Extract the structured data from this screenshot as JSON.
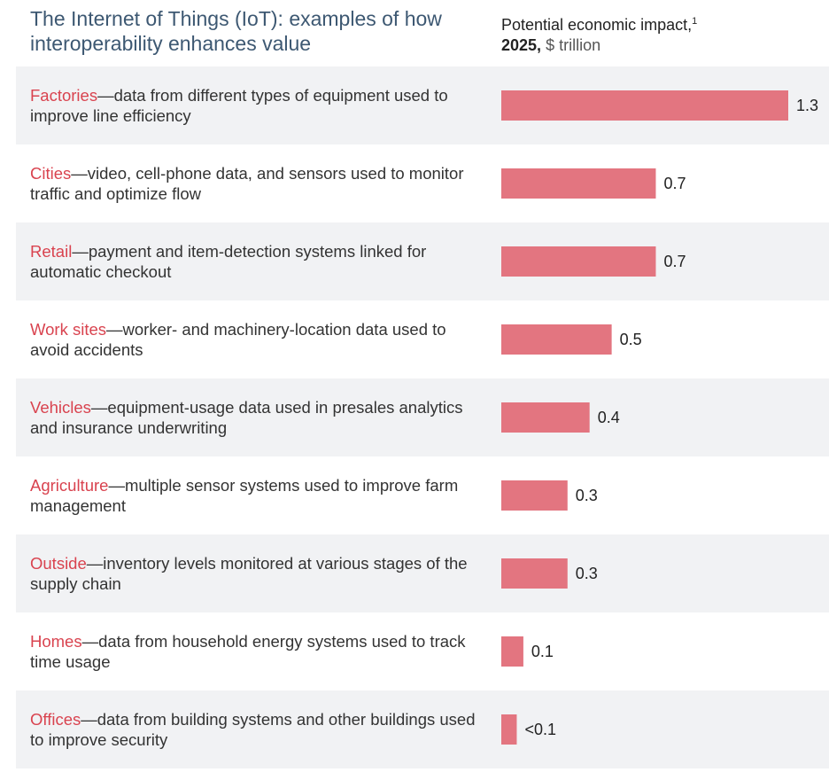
{
  "title": "The Internet of Things (IoT): examples of how interoperability enhances value",
  "unit_label": {
    "main": "Potential economic impact,",
    "footnote_mark": "1",
    "year": "2025,",
    "unit": "$ trillion"
  },
  "colors": {
    "bar": "#e37580",
    "category": "#d9434f",
    "title": "#3d5872",
    "shaded_row": "#f1f2f4"
  },
  "rows": [
    {
      "category": "Factories",
      "description": "data from different types of equipment used to improve line efficiency"
    },
    {
      "category": "Cities",
      "description": "video, cell-phone data, and sensors used to monitor traffic and optimize flow"
    },
    {
      "category": "Retail",
      "description": "payment and item-detection systems linked for automatic checkout"
    },
    {
      "category": "Work sites",
      "description": "worker- and machinery-location data used to avoid accidents"
    },
    {
      "category": "Vehicles",
      "description": "equipment-usage data used in presales analytics and insurance underwriting"
    },
    {
      "category": "Agriculture",
      "description": "multiple sensor systems used to improve farm management"
    },
    {
      "category": "Outside",
      "description": "inventory levels monitored at various stages of the supply chain"
    },
    {
      "category": "Homes",
      "description": "data from household energy systems used to track time usage"
    },
    {
      "category": "Offices",
      "description": "data from building systems and other buildings used to improve security"
    }
  ],
  "chart_data": {
    "type": "bar",
    "orientation": "horizontal",
    "categories": [
      "Factories",
      "Cities",
      "Retail",
      "Work sites",
      "Vehicles",
      "Agriculture",
      "Outside",
      "Homes",
      "Offices"
    ],
    "values": [
      1.3,
      0.7,
      0.7,
      0.5,
      0.4,
      0.3,
      0.3,
      0.1,
      0.07
    ],
    "value_labels": [
      "1.3",
      "0.7",
      "0.7",
      "0.5",
      "0.4",
      "0.3",
      "0.3",
      "0.1",
      "<0.1"
    ],
    "title": "The Internet of Things (IoT): examples of how interoperability enhances value",
    "xlabel": "Potential economic impact, 2025, $ trillion",
    "xlim": [
      0,
      1.3
    ],
    "grid": false
  }
}
